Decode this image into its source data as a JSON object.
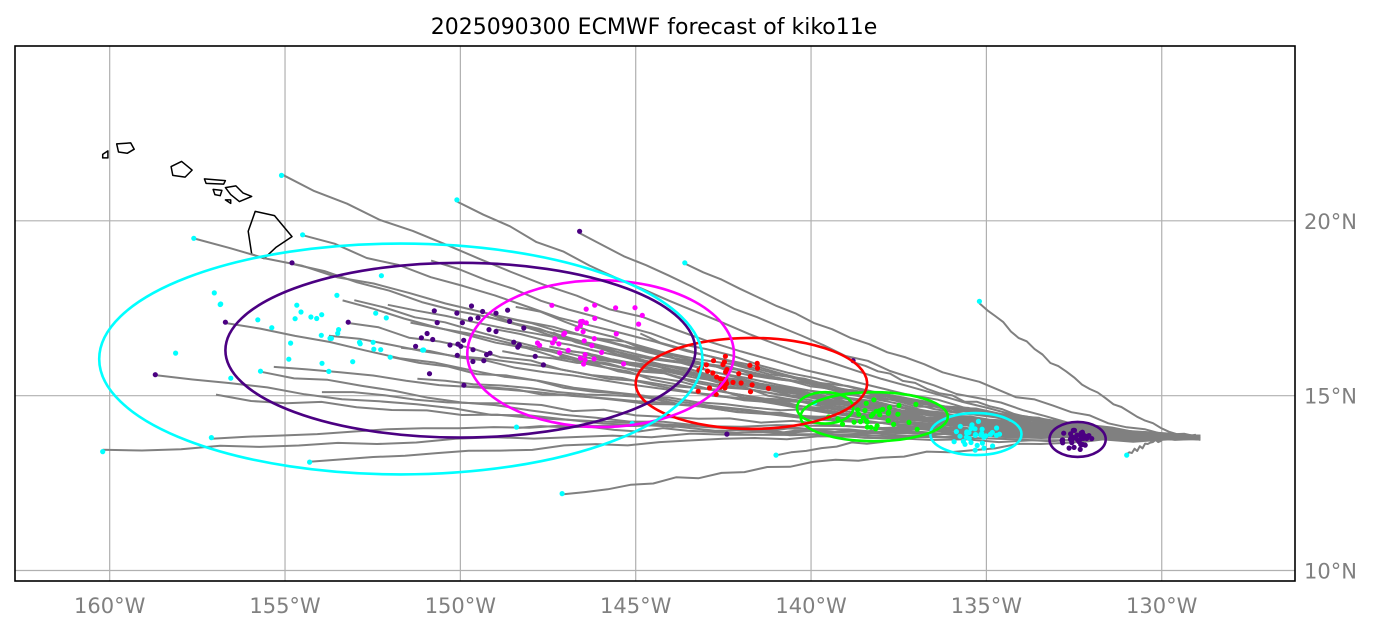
{
  "title": "2025090300 ECMWF forecast of kiko11e",
  "map": {
    "lon_range": [
      -162.7,
      -126.2
    ],
    "lat_range": [
      9.7,
      25.0
    ],
    "x_ticks": [
      {
        "value": -160,
        "label": "160°W"
      },
      {
        "value": -155,
        "label": "155°W"
      },
      {
        "value": -150,
        "label": "150°W"
      },
      {
        "value": -145,
        "label": "145°W"
      },
      {
        "value": -140,
        "label": "140°W"
      },
      {
        "value": -135,
        "label": "135°W"
      },
      {
        "value": -130,
        "label": "130°W"
      }
    ],
    "y_ticks": [
      {
        "value": 20,
        "label": "20°N"
      },
      {
        "value": 15,
        "label": "15°N"
      },
      {
        "value": 10,
        "label": "10°N"
      }
    ],
    "y_tick_position": "right",
    "grid": true,
    "colors": {
      "tracks": "#808080",
      "grid": "#b0b0b0",
      "coast": "#000000",
      "day1": "#4b0082",
      "day2": "#00ffff",
      "day3": "#00ff00",
      "day4": "#ff0000",
      "day5": "#ff00ff",
      "day6": "#4b0082",
      "day7": "#00ffff"
    }
  },
  "chart_data": {
    "type": "scatter",
    "title": "2025090300 ECMWF forecast of kiko11e",
    "start_point": {
      "lon": -128.9,
      "lat": 13.8
    },
    "ensemble_tracks_end_points": [
      [
        -160.2,
        13.4
      ],
      [
        -158.7,
        15.6
      ],
      [
        -157.6,
        19.5
      ],
      [
        -157.1,
        13.8
      ],
      [
        -156.7,
        17.1
      ],
      [
        -155.7,
        15.7
      ],
      [
        -155.1,
        21.3
      ],
      [
        -154.8,
        18.8
      ],
      [
        -154.5,
        19.6
      ],
      [
        -154.3,
        13.1
      ],
      [
        -153.2,
        17.1
      ],
      [
        -152.0,
        16.1
      ],
      [
        -150.1,
        20.6
      ],
      [
        -149.9,
        15.3
      ],
      [
        -148.4,
        14.1
      ],
      [
        -147.1,
        12.2
      ],
      [
        -146.6,
        19.7
      ],
      [
        -145.1,
        14.2
      ],
      [
        -143.6,
        18.8
      ],
      [
        -142.4,
        13.9
      ],
      [
        -141.0,
        13.3
      ],
      [
        -139.9,
        14.8
      ],
      [
        -138.8,
        16.0
      ],
      [
        -135.2,
        17.7
      ],
      [
        -131.0,
        13.3
      ]
    ],
    "position_clusters": [
      {
        "label": "day1",
        "color": "#4b0082",
        "center": {
          "lon": -132.4,
          "lat": 13.75
        },
        "spread": {
          "lon": 0.8,
          "lat": 0.45
        }
      },
      {
        "label": "day2",
        "color": "#00ffff",
        "center": {
          "lon": -135.3,
          "lat": 13.85
        },
        "spread": {
          "lon": 1.2,
          "lat": 0.6
        }
      },
      {
        "label": "day3",
        "color": "#00ff00",
        "center": {
          "lon": -138.3,
          "lat": 14.4
        },
        "spread": {
          "lon": 2.0,
          "lat": 0.65
        }
      },
      {
        "label": "day4",
        "color": "#ff0000",
        "center": {
          "lon": -142.3,
          "lat": 15.6
        },
        "spread": {
          "lon": 1.8,
          "lat": 0.9
        }
      },
      {
        "label": "day5",
        "color": "#ff00ff",
        "center": {
          "lon": -146.4,
          "lat": 16.7
        },
        "spread": {
          "lon": 2.5,
          "lat": 1.3
        }
      },
      {
        "label": "day6",
        "color": "#4b0082",
        "center": {
          "lon": -149.5,
          "lat": 16.9
        },
        "spread": {
          "lon": 3.7,
          "lat": 1.8
        }
      },
      {
        "label": "day7",
        "color": "#00ffff",
        "center": {
          "lon": -154.0,
          "lat": 16.7
        },
        "spread": {
          "lon": 5.5,
          "lat": 2.5
        }
      }
    ],
    "uncertainty_ellipses": [
      {
        "color": "#4b0082",
        "lon": -132.4,
        "lat": 13.75,
        "lon_radius": 0.8,
        "lat_radius": 0.5
      },
      {
        "color": "#00ffff",
        "lon": -135.3,
        "lat": 13.9,
        "lon_radius": 1.3,
        "lat_radius": 0.6
      },
      {
        "color": "#00ff00",
        "lon": -138.2,
        "lat": 14.4,
        "lon_radius": 2.1,
        "lat_radius": 0.7
      },
      {
        "color": "#00ff00",
        "lon": -139.6,
        "lat": 14.65,
        "lon_radius": 0.8,
        "lat_radius": 0.45
      },
      {
        "color": "#ff0000",
        "lon": -141.7,
        "lat": 15.35,
        "lon_radius": 3.3,
        "lat_radius": 1.3
      },
      {
        "color": "#ff00ff",
        "lon": -146.0,
        "lat": 16.2,
        "lon_radius": 3.8,
        "lat_radius": 2.1
      },
      {
        "color": "#4b0082",
        "lon": -150.0,
        "lat": 16.3,
        "lon_radius": 6.7,
        "lat_radius": 2.5
      },
      {
        "color": "#00ffff",
        "lon": -151.7,
        "lat": 16.05,
        "lon_radius": 8.6,
        "lat_radius": 3.3
      }
    ],
    "coastline_islands": [
      {
        "name": "Niihau-Kauai",
        "points": [
          [
            -159.8,
            22.2
          ],
          [
            -159.4,
            22.23
          ],
          [
            -159.3,
            22.05
          ],
          [
            -159.5,
            21.93
          ],
          [
            -159.75,
            21.97
          ]
        ]
      },
      {
        "name": "Niihau",
        "points": [
          [
            -160.2,
            21.9
          ],
          [
            -160.05,
            22.0
          ],
          [
            -160.05,
            21.8
          ],
          [
            -160.2,
            21.8
          ]
        ]
      },
      {
        "name": "Oahu",
        "points": [
          [
            -158.25,
            21.55
          ],
          [
            -157.95,
            21.7
          ],
          [
            -157.65,
            21.45
          ],
          [
            -157.85,
            21.25
          ],
          [
            -158.2,
            21.3
          ]
        ]
      },
      {
        "name": "Molokai",
        "points": [
          [
            -157.3,
            21.2
          ],
          [
            -156.7,
            21.15
          ],
          [
            -156.75,
            21.05
          ],
          [
            -157.25,
            21.07
          ]
        ]
      },
      {
        "name": "Lanai",
        "points": [
          [
            -157.05,
            20.9
          ],
          [
            -156.8,
            20.87
          ],
          [
            -156.85,
            20.72
          ],
          [
            -157.0,
            20.75
          ]
        ]
      },
      {
        "name": "Maui",
        "points": [
          [
            -156.7,
            20.95
          ],
          [
            -156.4,
            21.0
          ],
          [
            -156.2,
            20.8
          ],
          [
            -155.95,
            20.7
          ],
          [
            -156.3,
            20.55
          ],
          [
            -156.55,
            20.75
          ]
        ]
      },
      {
        "name": "Kahoolawe",
        "points": [
          [
            -156.7,
            20.6
          ],
          [
            -156.55,
            20.6
          ],
          [
            -156.55,
            20.5
          ]
        ]
      },
      {
        "name": "Hawaii",
        "points": [
          [
            -155.85,
            20.27
          ],
          [
            -155.3,
            20.15
          ],
          [
            -154.8,
            19.55
          ],
          [
            -155.25,
            19.25
          ],
          [
            -155.6,
            18.92
          ],
          [
            -155.95,
            19.05
          ],
          [
            -156.05,
            19.7
          ]
        ]
      }
    ]
  }
}
